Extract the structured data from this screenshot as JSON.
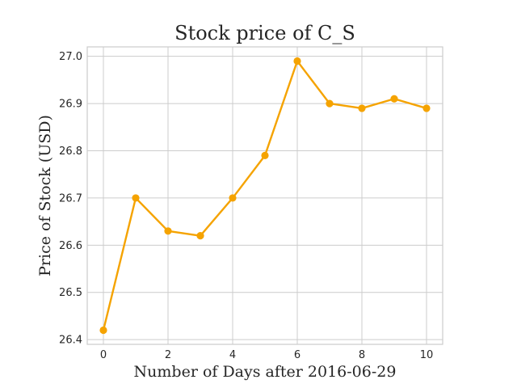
{
  "chart_data": {
    "type": "line",
    "title": "Stock price of C_S",
    "xlabel": "Number of Days after 2016-06-29",
    "ylabel": "Price of Stock (USD)",
    "x": [
      0,
      1,
      2,
      3,
      4,
      5,
      6,
      7,
      8,
      9,
      10
    ],
    "series": [
      {
        "values": [
          26.42,
          26.7,
          26.63,
          26.62,
          26.7,
          26.79,
          26.99,
          26.9,
          26.89,
          26.91,
          26.89
        ],
        "color": "#f5a300",
        "marker": "circle"
      }
    ],
    "xlim": [
      -0.5,
      10.5
    ],
    "ylim": [
      26.39,
      27.02
    ],
    "xticks": [
      0,
      2,
      4,
      6,
      8,
      10
    ],
    "xtick_labels": [
      "0",
      "2",
      "4",
      "6",
      "8",
      "10"
    ],
    "yticks": [
      26.4,
      26.5,
      26.6,
      26.7,
      26.8,
      26.9,
      27.0
    ],
    "ytick_labels": [
      "26.4",
      "26.5",
      "26.6",
      "26.7",
      "26.8",
      "26.9",
      "27.0"
    ],
    "grid": true,
    "style": "whitegrid"
  }
}
